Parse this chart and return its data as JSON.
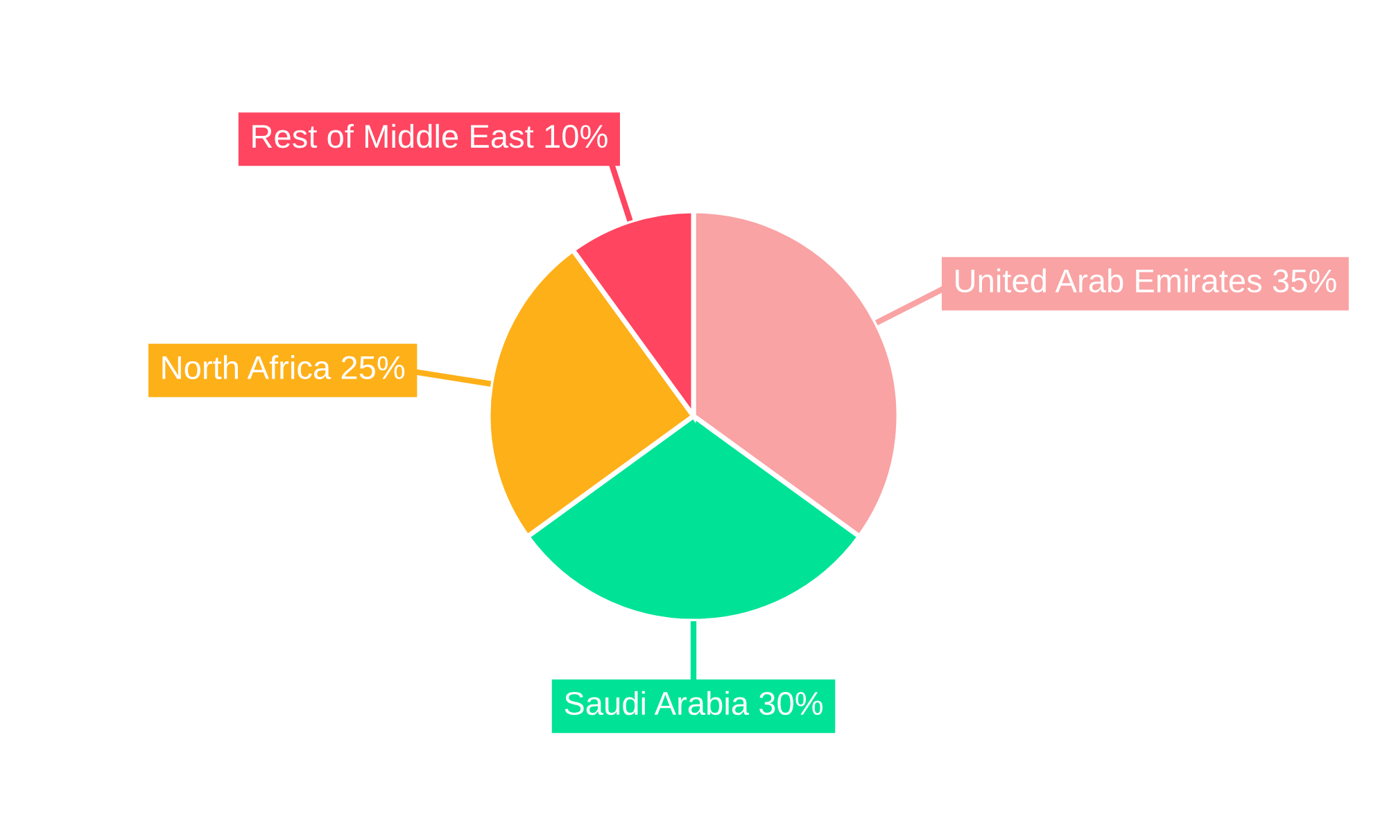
{
  "chart_data": {
    "type": "pie",
    "categories": [
      "United Arab Emirates",
      "Saudi Arabia",
      "North Africa",
      "Rest of Middle East"
    ],
    "values": [
      35,
      30,
      25,
      10
    ],
    "colors": [
      "#f9a3a4",
      "#00e396",
      "#feb019",
      "#ff4560"
    ],
    "value_labels": [
      "35%",
      "30%",
      "25%",
      "10%"
    ]
  }
}
